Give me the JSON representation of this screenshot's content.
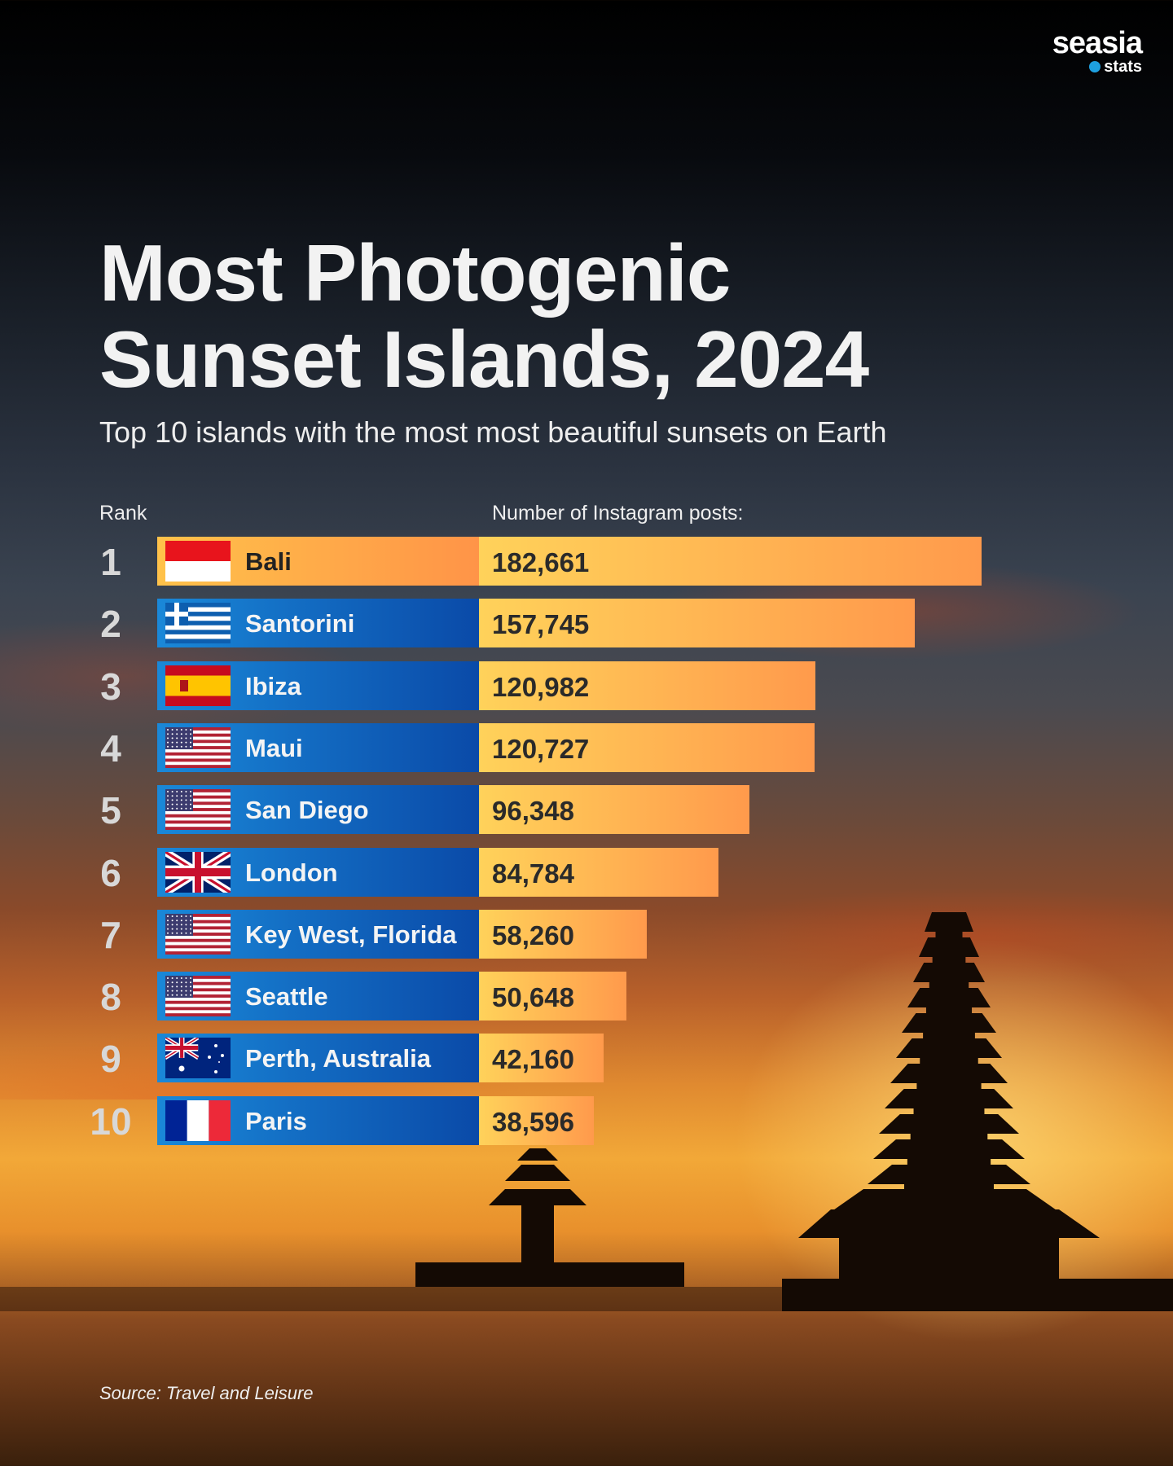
{
  "brand": {
    "line1": "seasia",
    "line2": "stats"
  },
  "title_line1": "Most Photogenic",
  "title_line2": "Sunset Islands, 2024",
  "subtitle": "Top 10 islands with the most most beautiful sunsets on Earth",
  "rank_header": "Rank",
  "value_header": "Number of Instagram posts:",
  "source": "Source: Travel and Leisure",
  "chart_data": {
    "type": "bar",
    "title": "Most Photogenic Sunset Islands, 2024",
    "ylabel": "Number of Instagram posts",
    "rows": [
      {
        "rank": "1",
        "name": "Bali",
        "flag": "indonesia",
        "value": 182661,
        "label": "182,661"
      },
      {
        "rank": "2",
        "name": "Santorini",
        "flag": "greece",
        "value": 157745,
        "label": "157,745"
      },
      {
        "rank": "3",
        "name": "Ibiza",
        "flag": "spain",
        "value": 120982,
        "label": "120,982"
      },
      {
        "rank": "4",
        "name": "Maui",
        "flag": "usa",
        "value": 120727,
        "label": "120,727"
      },
      {
        "rank": "5",
        "name": "San Diego",
        "flag": "usa",
        "value": 96348,
        "label": "96,348"
      },
      {
        "rank": "6",
        "name": "London",
        "flag": "uk",
        "value": 84784,
        "label": "84,784"
      },
      {
        "rank": "7",
        "name": "Key West, Florida",
        "flag": "usa",
        "value": 58260,
        "label": "58,260"
      },
      {
        "rank": "8",
        "name": "Seattle",
        "flag": "usa",
        "value": 50648,
        "label": "50,648"
      },
      {
        "rank": "9",
        "name": "Perth, Australia",
        "flag": "australia",
        "value": 42160,
        "label": "42,160"
      },
      {
        "rank": "10",
        "name": "Paris",
        "flag": "france",
        "value": 38596,
        "label": "38,596"
      }
    ]
  }
}
